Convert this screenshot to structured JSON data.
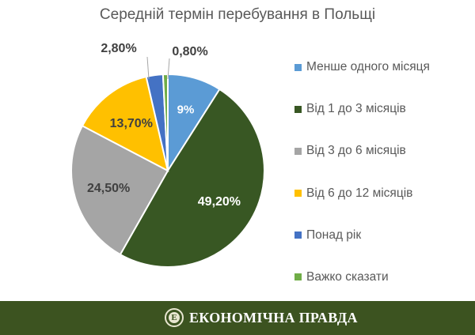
{
  "chart_data": {
    "type": "pie",
    "title": "Середній термін перебування в Польщі",
    "slices": [
      {
        "label": "Менше одного місяця",
        "value": 9,
        "display": "9%",
        "color": "#5b9bd5"
      },
      {
        "label": "Від 1 до 3 місяців",
        "value": 49.2,
        "display": "49,20%",
        "color": "#385723"
      },
      {
        "label": "Від 3 до 6 місяців",
        "value": 24.5,
        "display": "24,50%",
        "color": "#a5a5a5"
      },
      {
        "label": "Від 6 до 12 місяців",
        "value": 13.7,
        "display": "13,70%",
        "color": "#ffc000"
      },
      {
        "label": "Понад рік",
        "value": 2.8,
        "display": "2,80%",
        "color": "#4472c4"
      },
      {
        "label": "Важко сказати",
        "value": 0.8,
        "display": "0,80%",
        "color": "#70ad47"
      }
    ],
    "legend_position": "right"
  },
  "footer": {
    "brand_name": "ЕКОНОМІЧНА ПРАВДА",
    "logo_letter": "Е"
  }
}
